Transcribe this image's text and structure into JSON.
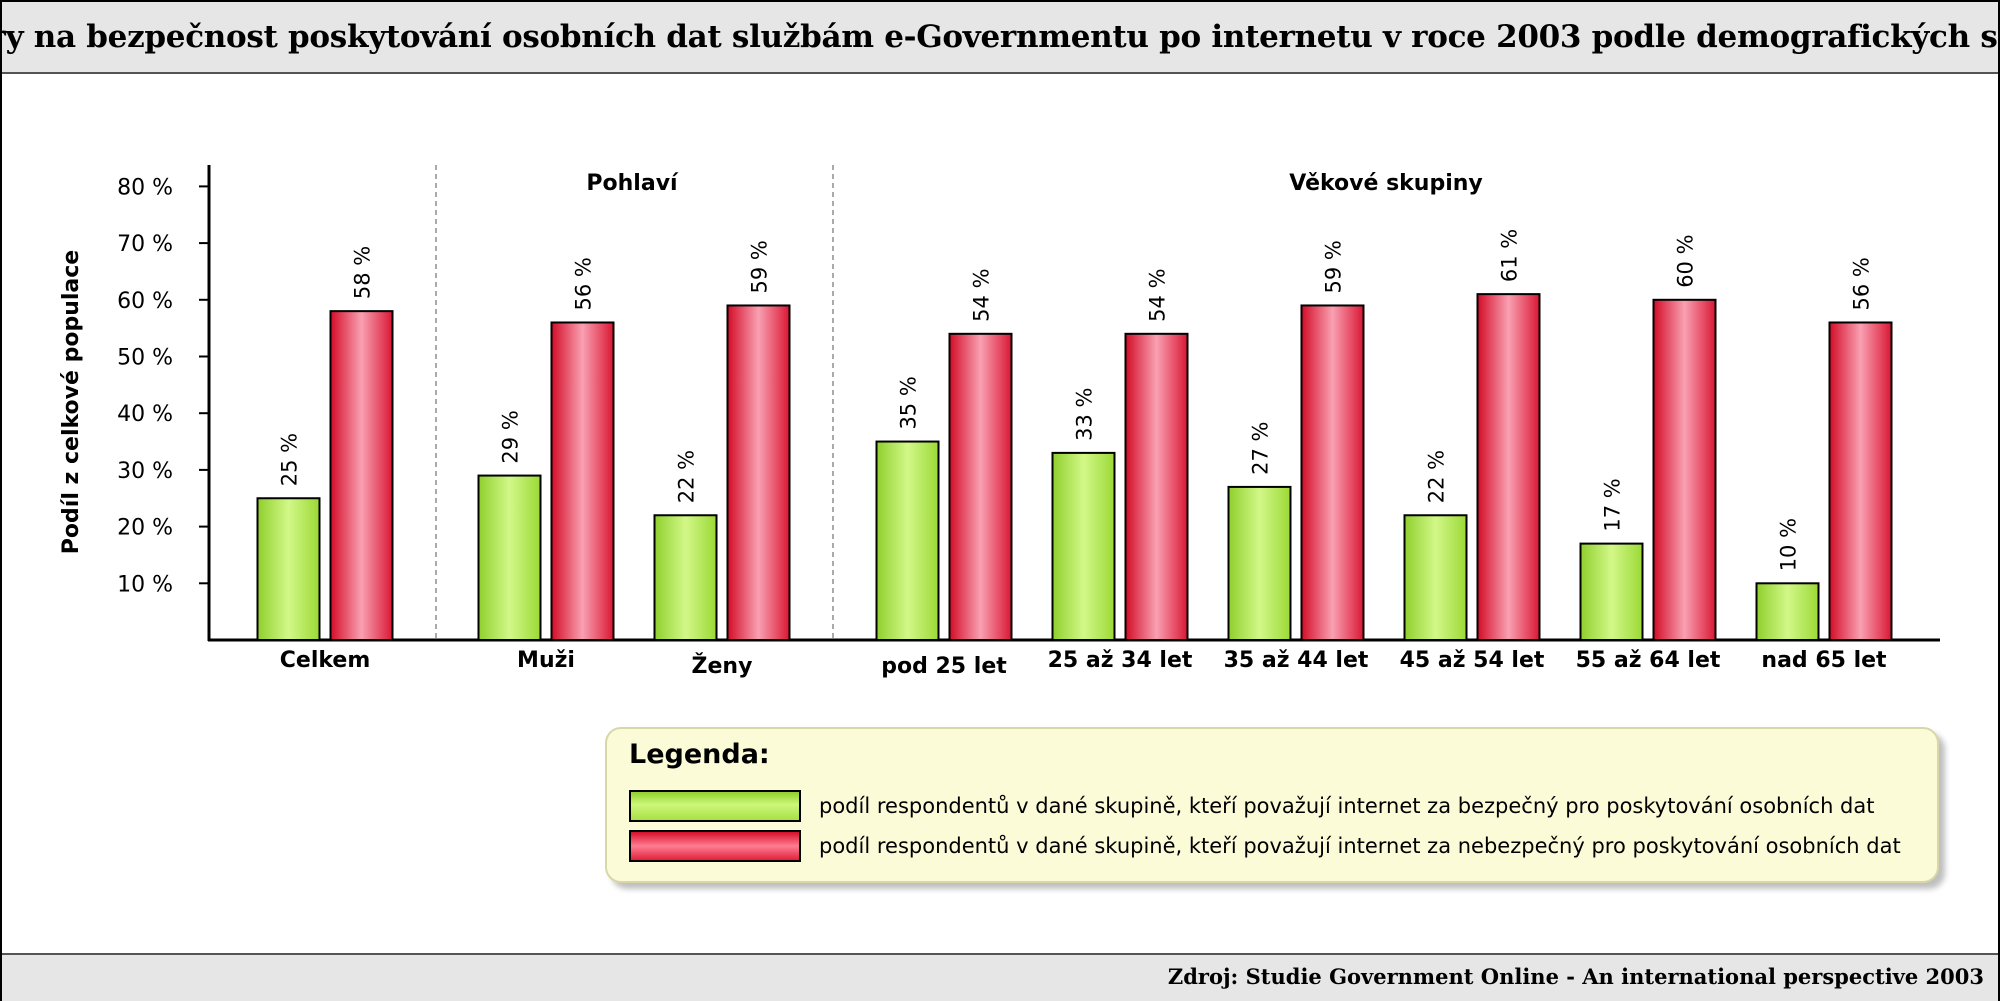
{
  "header": {
    "title": "Názory na bezpečnost poskytování osobních dat službám e-Governmentu po internetu v roce 2003 podle demografických skupin"
  },
  "footer": {
    "source": "Zdroj: Studie Government Online - An international perspective 2003"
  },
  "legend": {
    "title": "Legenda:",
    "items": [
      {
        "label": "podíl respondentů v dané skupině, kteří považují internet za bezpečný pro poskytování osobních dat",
        "color": "#b8ee58"
      },
      {
        "label": "podíl respondentů v dané skupině, kteří považují internet za nebezpečný pro poskytování osobních dat",
        "color": "#f0304c"
      }
    ]
  },
  "chart_data": {
    "type": "bar",
    "title": "Názory na bezpečnost poskytování osobních dat službám e-Governmentu po internetu v roce 2003 podle demografických skupin",
    "ylabel": "Podíl z celkové populace",
    "xlabel": "",
    "ylim": [
      0,
      80
    ],
    "yticks": [
      10,
      20,
      30,
      40,
      50,
      60,
      70,
      80
    ],
    "ytick_labels": [
      "10 %",
      "20 %",
      "30 %",
      "40 %",
      "50 %",
      "60 %",
      "70 %",
      "80 %"
    ],
    "categories": [
      "Celkem",
      "Muži",
      "Ženy",
      "pod 25 let",
      "25 až 34 let",
      "35 až 44 let",
      "45 až 54 let",
      "55 až 64 let",
      "nad 65 let"
    ],
    "groups": [
      {
        "label": "Pohlaví",
        "categories": [
          "Muži",
          "Ženy"
        ]
      },
      {
        "label": "Věkové skupiny",
        "categories": [
          "pod 25 let",
          "25 až 34 let",
          "35 až 44 let",
          "45 až 54 let",
          "55 až 64 let",
          "nad 65 let"
        ]
      }
    ],
    "series": [
      {
        "values": [
          25,
          29,
          22,
          35,
          33,
          27,
          22,
          17,
          10
        ],
        "labels": [
          "25 %",
          "29 %",
          "22 %",
          "35 %",
          "33 %",
          "27 %",
          "22 %",
          "17 %",
          "10 %"
        ],
        "color": "#b8ee58"
      },
      {
        "values": [
          58,
          56,
          59,
          54,
          54,
          59,
          61,
          60,
          56
        ],
        "labels": [
          "58 %",
          "56 %",
          "59 %",
          "54 %",
          "54 %",
          "59 %",
          "61 %",
          "60 %",
          "56 %"
        ],
        "color": "#f0304c"
      }
    ],
    "grid": false,
    "legend_position": "bottom-right"
  }
}
